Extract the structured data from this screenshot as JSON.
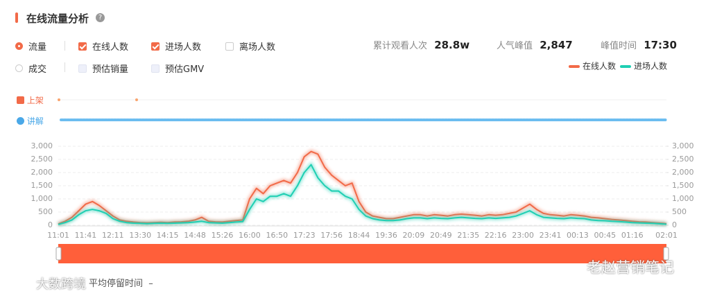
{
  "header": {
    "title": "在线流量分析"
  },
  "controls": {
    "radios": [
      "流量",
      "成交"
    ],
    "checkboxes": [
      {
        "label": "在线人数",
        "checked": true
      },
      {
        "label": "进场人数",
        "checked": true
      },
      {
        "label": "离场人数",
        "checked": false
      },
      {
        "label": "预估销量",
        "checked": false
      },
      {
        "label": "预估GMV",
        "checked": false
      }
    ]
  },
  "stats": [
    {
      "label": "累计观看人次",
      "value": "28.8w"
    },
    {
      "label": "人气峰值",
      "value": "2,847"
    },
    {
      "label": "峰值时间",
      "value": "17:30"
    }
  ],
  "tracks": [
    "上架",
    "讲解"
  ],
  "footer": {
    "label": "平均停留时间",
    "value": "–"
  },
  "watermarks": [
    "大数跨境",
    "老赵营销笔记"
  ],
  "chart_data": {
    "type": "line",
    "categories": [
      "11:01",
      null,
      null,
      null,
      "11:41",
      null,
      null,
      null,
      "12:11",
      null,
      null,
      null,
      "13:30",
      null,
      null,
      null,
      "14:15",
      null,
      null,
      null,
      "14:48",
      null,
      null,
      null,
      "15:26",
      null,
      null,
      null,
      "16:00",
      null,
      null,
      null,
      "16:50",
      null,
      null,
      null,
      "17:23",
      null,
      null,
      null,
      "17:56",
      null,
      null,
      null,
      "18:44",
      null,
      null,
      null,
      "19:36",
      null,
      null,
      null,
      "20:09",
      null,
      null,
      null,
      "20:49",
      null,
      null,
      null,
      "21:35",
      null,
      null,
      null,
      "22:16",
      null,
      null,
      null,
      "23:00",
      null,
      null,
      null,
      "23:41",
      null,
      null,
      null,
      "00:13",
      null,
      null,
      null,
      "00:45",
      null,
      null,
      null,
      "01:16",
      null,
      null,
      null,
      null,
      "02:01"
    ],
    "series": [
      {
        "name": "在线人数",
        "color": "#f26a48",
        "values": [
          50,
          150,
          300,
          550,
          800,
          900,
          750,
          550,
          350,
          200,
          150,
          120,
          100,
          90,
          100,
          110,
          100,
          120,
          130,
          150,
          200,
          300,
          150,
          130,
          120,
          150,
          180,
          200,
          1000,
          1400,
          1200,
          1500,
          1600,
          1700,
          1600,
          2000,
          2600,
          2800,
          2700,
          2200,
          1900,
          1700,
          1500,
          1600,
          900,
          500,
          350,
          300,
          250,
          250,
          300,
          350,
          400,
          400,
          350,
          400,
          380,
          350,
          400,
          420,
          400,
          380,
          350,
          400,
          380,
          400,
          450,
          500,
          650,
          800,
          600,
          450,
          400,
          380,
          350,
          400,
          380,
          350,
          300,
          280,
          250,
          220,
          200,
          180,
          150,
          130,
          120,
          100,
          80,
          60
        ]
      },
      {
        "name": "进场人数",
        "color": "#1fcfb3",
        "values": [
          30,
          100,
          200,
          400,
          550,
          600,
          550,
          450,
          250,
          150,
          100,
          80,
          70,
          60,
          70,
          80,
          70,
          80,
          90,
          100,
          120,
          150,
          100,
          90,
          80,
          100,
          120,
          140,
          600,
          1000,
          900,
          1100,
          1100,
          1200,
          1100,
          1500,
          2000,
          2300,
          1800,
          1500,
          1300,
          1300,
          1100,
          1000,
          600,
          350,
          250,
          200,
          180,
          180,
          200,
          250,
          280,
          280,
          250,
          280,
          260,
          250,
          280,
          300,
          280,
          260,
          250,
          280,
          260,
          280,
          300,
          350,
          450,
          550,
          400,
          300,
          280,
          260,
          250,
          280,
          260,
          250,
          200,
          180,
          170,
          150,
          140,
          120,
          100,
          90,
          80,
          70,
          55,
          40
        ]
      }
    ],
    "ylim": [
      0,
      3000
    ],
    "yticks": [
      0,
      {
        "value": 500,
        "label": "500"
      },
      {
        "value": 1000,
        "label": "1,000"
      },
      {
        "value": 1500,
        "label": "1,500"
      },
      {
        "value": 2000,
        "label": "2,000"
      },
      {
        "value": 2500,
        "label": "2,500"
      },
      {
        "value": 3000,
        "label": "3,000"
      }
    ],
    "y2lim": [
      0,
      3000
    ],
    "y2ticks": [
      0,
      {
        "value": 500,
        "label": "500"
      },
      {
        "value": 1000,
        "label": "1,000"
      },
      {
        "value": 1500,
        "label": "1,500"
      },
      {
        "value": 2000,
        "label": "2,000"
      },
      {
        "value": 2500,
        "label": "2,500"
      },
      {
        "value": 3000,
        "label": "3,000"
      }
    ],
    "grid": true,
    "legend": "top-right"
  }
}
